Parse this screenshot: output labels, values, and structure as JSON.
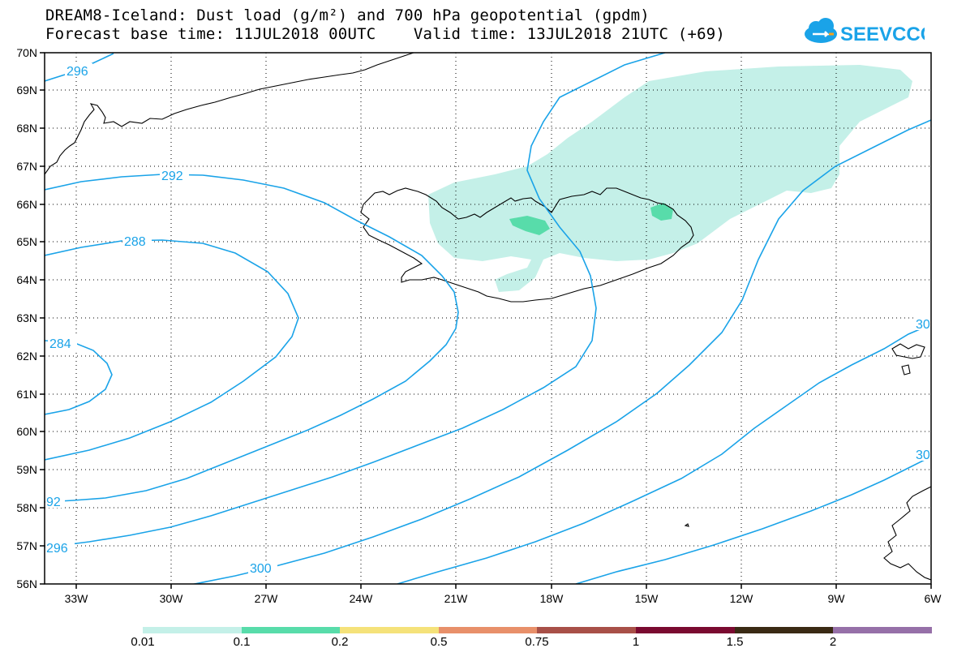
{
  "title_line1": "DREAM8-Iceland: Dust load (g/m²) and 700 hPa geopotential (gpdm)",
  "title_line2": "Forecast base time: 11JUL2018 00UTC    Valid time: 13JUL2018 21UTC (+69)",
  "logo_text": "SEEVCCC",
  "latitude_labels": [
    "70N",
    "69N",
    "68N",
    "67N",
    "66N",
    "65N",
    "64N",
    "63N",
    "62N",
    "61N",
    "60N",
    "59N",
    "58N",
    "57N",
    "56N"
  ],
  "longitude_labels": [
    "33W",
    "30W",
    "27W",
    "24W",
    "21W",
    "18W",
    "15W",
    "12W",
    "9W",
    "6W"
  ],
  "contour_labels": [
    "296",
    "292",
    "288",
    "284",
    "30",
    "30",
    "92",
    "296",
    "300"
  ],
  "colorbar": {
    "labels": [
      "0.01",
      "0.1",
      "0.2",
      "0.5",
      "0.75",
      "1",
      "1.5",
      "2"
    ],
    "colors": [
      "#c4f0e8",
      "#58dcaa",
      "#f5e27a",
      "#e8906a",
      "#a85048",
      "#7a0a30",
      "#3a2a14",
      "#9670a8"
    ]
  },
  "colors": {
    "contour": "#1aa3e8",
    "coast": "#000000",
    "dust_low": "#c4f0e8",
    "dust_mid": "#58dcaa"
  }
}
